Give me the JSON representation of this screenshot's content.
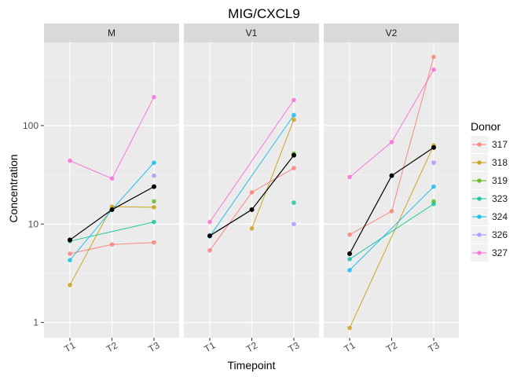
{
  "chart_data": {
    "type": "line",
    "title": "MIG/CXCL9",
    "xlabel": "Timepoint",
    "ylabel": "Concentration",
    "y_scale": "log10",
    "ylim": [
      0.7,
      700
    ],
    "y_ticks": [
      1,
      10,
      100
    ],
    "y_tick_labels": [
      "1",
      "10",
      "100"
    ],
    "categories": [
      "T1",
      "T2",
      "T3"
    ],
    "grid": true,
    "legend": {
      "title": "Donor",
      "position": "right",
      "entries": [
        "317",
        "318",
        "319",
        "323",
        "324",
        "326",
        "327"
      ]
    },
    "colors": {
      "317": "#F8766D",
      "318": "#C49A00",
      "319": "#53B400",
      "323": "#00C094",
      "324": "#00B6EB",
      "326": "#A58AFF",
      "327": "#FB61D7",
      "mean": "#000000",
      "panel_bg": "#EBEBEB",
      "strip_bg": "#D9D9D9",
      "grid": "#FFFFFF"
    },
    "panels": [
      {
        "name": "M",
        "series": [
          {
            "name": "317",
            "values": [
              5.0,
              6.2,
              6.5
            ]
          },
          {
            "name": "318",
            "values": [
              2.4,
              15,
              14.8
            ]
          },
          {
            "name": "319",
            "values": [
              null,
              null,
              17
            ]
          },
          {
            "name": "323",
            "values": [
              6.7,
              null,
              10.5
            ]
          },
          {
            "name": "324",
            "values": [
              4.3,
              14,
              42
            ]
          },
          {
            "name": "326",
            "values": [
              null,
              null,
              31
            ]
          },
          {
            "name": "327",
            "values": [
              44,
              29,
              195
            ]
          }
        ],
        "mean": [
          6.9,
          14,
          24
        ]
      },
      {
        "name": "V1",
        "series": [
          {
            "name": "317",
            "values": [
              5.4,
              21,
              37
            ]
          },
          {
            "name": "318",
            "values": [
              null,
              9,
              115
            ]
          },
          {
            "name": "319",
            "values": [
              null,
              null,
              52
            ]
          },
          {
            "name": "323",
            "values": [
              null,
              null,
              16.5
            ]
          },
          {
            "name": "324",
            "values": [
              7.5,
              null,
              128
            ]
          },
          {
            "name": "326",
            "values": [
              null,
              null,
              10
            ]
          },
          {
            "name": "327",
            "values": [
              10.5,
              null,
              182
            ]
          }
        ],
        "mean": [
          7.6,
          14,
          50
        ]
      },
      {
        "name": "V2",
        "series": [
          {
            "name": "317",
            "values": [
              7.8,
              13.5,
              500
            ]
          },
          {
            "name": "318",
            "values": [
              0.88,
              null,
              63
            ]
          },
          {
            "name": "319",
            "values": [
              null,
              null,
              17
            ]
          },
          {
            "name": "323",
            "values": [
              4.4,
              null,
              16
            ]
          },
          {
            "name": "324",
            "values": [
              3.4,
              null,
              24
            ]
          },
          {
            "name": "326",
            "values": [
              null,
              null,
              42
            ]
          },
          {
            "name": "327",
            "values": [
              30,
              68,
              370
            ]
          }
        ],
        "mean": [
          5.0,
          31,
          60
        ]
      }
    ]
  }
}
